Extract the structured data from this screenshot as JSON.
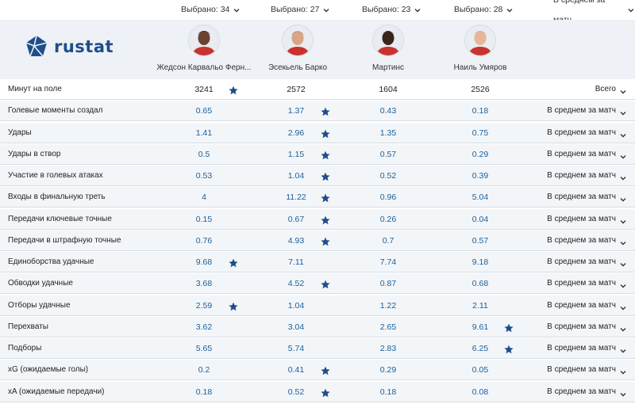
{
  "selectors": [
    {
      "label": "Выбрано: 34"
    },
    {
      "label": "Выбрано: 27"
    },
    {
      "label": "Выбрано: 23"
    },
    {
      "label": "Выбрано: 28"
    },
    {
      "label": "В среднем за матч"
    }
  ],
  "brand": {
    "name": "rustat",
    "color": "#1f4d8a"
  },
  "players": [
    {
      "name": "Жедсон Карвальо Ферн..."
    },
    {
      "name": "Эсекьель Барко"
    },
    {
      "name": "Мартинс"
    },
    {
      "name": "Наиль Умяров"
    }
  ],
  "colors": {
    "value_link": "#1b5e9b",
    "star": "#1f4d8a",
    "row_bg": "#f3f6f9",
    "header_bg": "#eef1f5"
  },
  "rows": [
    {
      "label": "Минут на поле",
      "values": [
        "3241",
        "2572",
        "1604",
        "2526"
      ],
      "star": 0,
      "mode": "Всего"
    },
    {
      "label": "Голевые моменты создал",
      "values": [
        "0.65",
        "1.37",
        "0.43",
        "0.18"
      ],
      "star": 1,
      "mode": "В среднем за матч"
    },
    {
      "label": "Удары",
      "values": [
        "1.41",
        "2.96",
        "1.35",
        "0.75"
      ],
      "star": 1,
      "mode": "В среднем за матч"
    },
    {
      "label": "Удары в створ",
      "values": [
        "0.5",
        "1.15",
        "0.57",
        "0.29"
      ],
      "star": 1,
      "mode": "В среднем за матч"
    },
    {
      "label": "Участие в голевых атаках",
      "values": [
        "0.53",
        "1.04",
        "0.52",
        "0.39"
      ],
      "star": 1,
      "mode": "В среднем за матч"
    },
    {
      "label": "Входы в финальную треть",
      "values": [
        "4",
        "11.22",
        "0.96",
        "5.04"
      ],
      "star": 1,
      "mode": "В среднем за матч"
    },
    {
      "label": "Передачи ключевые точные",
      "values": [
        "0.15",
        "0.67",
        "0.26",
        "0.04"
      ],
      "star": 1,
      "mode": "В среднем за матч"
    },
    {
      "label": "Передачи в штрафную точные",
      "values": [
        "0.76",
        "4.93",
        "0.7",
        "0.57"
      ],
      "star": 1,
      "mode": "В среднем за матч"
    },
    {
      "label": "Единоборства удачные",
      "values": [
        "9.68",
        "7.11",
        "7.74",
        "9.18"
      ],
      "star": 0,
      "mode": "В среднем за матч"
    },
    {
      "label": "Обводки удачные",
      "values": [
        "3.68",
        "4.52",
        "0.87",
        "0.68"
      ],
      "star": 1,
      "mode": "В среднем за матч"
    },
    {
      "label": "Отборы удачные",
      "values": [
        "2.59",
        "1.04",
        "1.22",
        "2.11"
      ],
      "star": 0,
      "mode": "В среднем за матч"
    },
    {
      "label": "Перехваты",
      "values": [
        "3.62",
        "3.04",
        "2.65",
        "9.61"
      ],
      "star": 3,
      "mode": "В среднем за матч"
    },
    {
      "label": "Подборы",
      "values": [
        "5.65",
        "5.74",
        "2.83",
        "6.25"
      ],
      "star": 3,
      "mode": "В среднем за матч"
    },
    {
      "label": "xG (ожидаемые голы)",
      "values": [
        "0.2",
        "0.41",
        "0.29",
        "0.05"
      ],
      "star": 1,
      "mode": "В среднем за матч"
    },
    {
      "label": "xA (ожидаемые передачи)",
      "values": [
        "0.18",
        "0.52",
        "0.18",
        "0.08"
      ],
      "star": 1,
      "mode": "В среднем за матч"
    }
  ]
}
